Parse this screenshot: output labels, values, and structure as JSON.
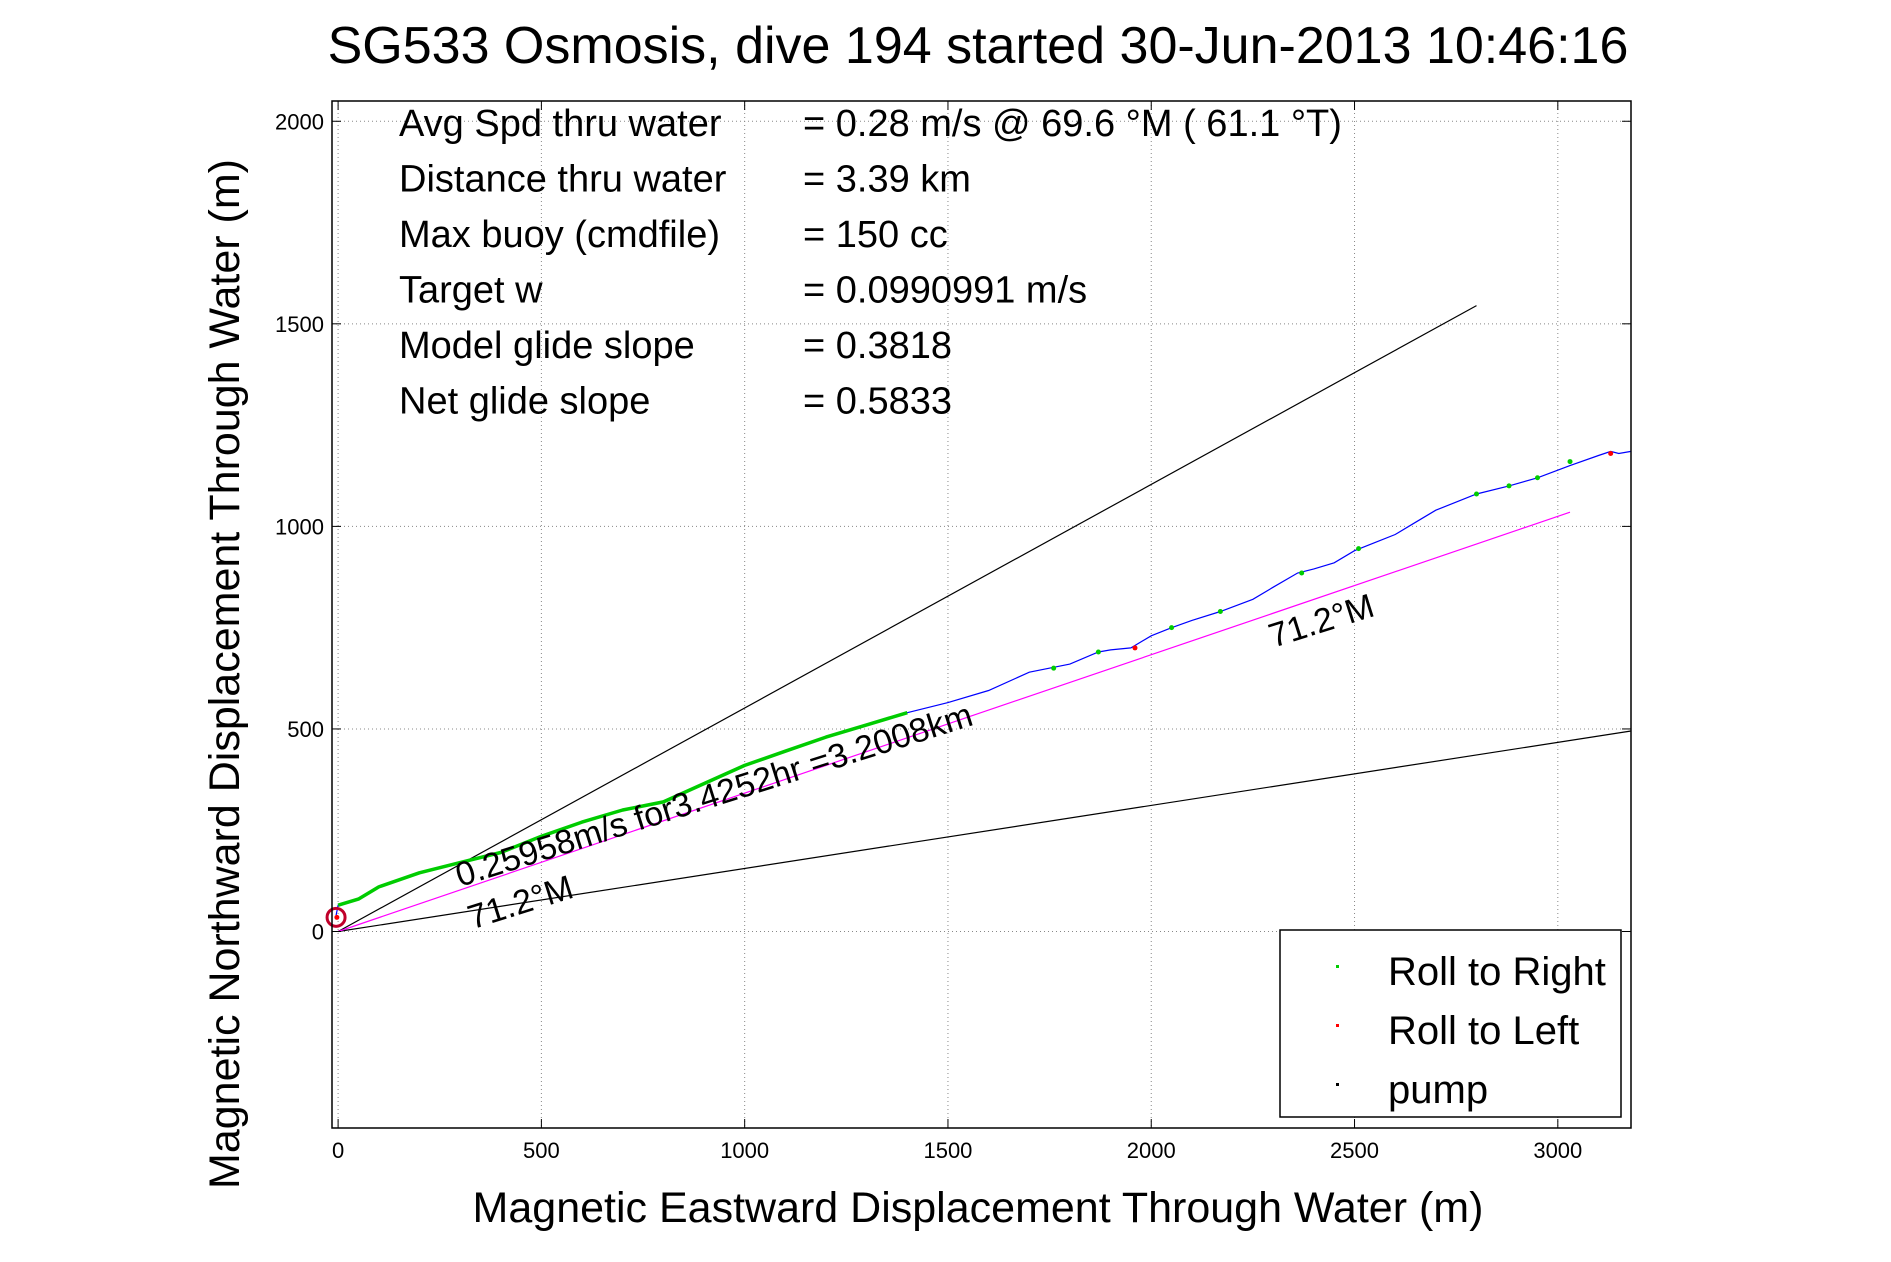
{
  "chart_data": {
    "type": "line",
    "title": "SG533 Osmosis, dive 194 started 30-Jun-2013 10:46:16",
    "xlabel": "Magnetic Eastward Displacement Through Water (m)",
    "ylabel": "Magnetic Northward Displacement Through Water (m)",
    "xlim": [
      -15,
      3180
    ],
    "ylim": [
      -485,
      2050
    ],
    "xticks": [
      0,
      500,
      1000,
      1500,
      2000,
      2500,
      3000
    ],
    "yticks": [
      0,
      500,
      1000,
      1500,
      2000
    ],
    "grid": true,
    "stats": [
      {
        "label": "Avg Spd thru water",
        "value": "=  0.28 m/s @  69.6 °M ( 61.1 °T)"
      },
      {
        "label": "Distance thru water",
        "value": "=  3.39 km"
      },
      {
        "label": "Max buoy (cmdfile)",
        "value": "= 150 cc"
      },
      {
        "label": "Target w",
        "value": "= 0.0990991 m/s"
      },
      {
        "label": "Model glide slope",
        "value": "= 0.3818"
      },
      {
        "label": "Net glide slope",
        "value": "= 0.5833"
      }
    ],
    "track": {
      "color": "#0000ff",
      "x": [
        -5,
        0,
        50,
        100,
        200,
        300,
        400,
        500,
        600,
        700,
        800,
        900,
        1000,
        1100,
        1200,
        1300,
        1400,
        1500,
        1600,
        1700,
        1800,
        1870,
        1900,
        1950,
        2000,
        2050,
        2100,
        2170,
        2250,
        2300,
        2360,
        2400,
        2450,
        2500,
        2550,
        2600,
        2650,
        2700,
        2750,
        2800,
        2880,
        2950,
        3030,
        3100,
        3130,
        3150,
        3180
      ],
      "y": [
        40,
        65,
        80,
        110,
        145,
        170,
        195,
        235,
        270,
        300,
        320,
        365,
        410,
        445,
        480,
        510,
        540,
        565,
        595,
        640,
        660,
        690,
        695,
        700,
        730,
        750,
        768,
        790,
        820,
        850,
        885,
        895,
        910,
        940,
        960,
        980,
        1010,
        1040,
        1060,
        1080,
        1100,
        1120,
        1150,
        1175,
        1185,
        1180,
        1185
      ]
    },
    "roll_right_segments": [
      {
        "x": [
          0,
          50,
          100,
          200,
          300,
          400,
          500,
          600,
          700,
          800,
          900,
          1000,
          1100,
          1200,
          1300,
          1400
        ],
        "y": [
          65,
          80,
          110,
          145,
          170,
          195,
          235,
          270,
          300,
          320,
          365,
          410,
          445,
          480,
          510,
          540
        ]
      }
    ],
    "roll_right_points": {
      "x": [
        1760,
        1870,
        2050,
        2170,
        2370,
        2510,
        2800,
        2880,
        2950,
        3030
      ],
      "y": [
        650,
        690,
        750,
        790,
        885,
        945,
        1080,
        1100,
        1120,
        1160
      ]
    },
    "roll_left_points": {
      "x": [
        -3,
        1960,
        3130
      ],
      "y": [
        35,
        700,
        1180
      ]
    },
    "start_circle": {
      "x": -5,
      "y": 35,
      "color": "#c0002a"
    },
    "ref_lines": [
      {
        "x": [
          0,
          2800
        ],
        "y": [
          0,
          1545
        ],
        "color": "#000000"
      },
      {
        "x": [
          0,
          3180
        ],
        "y": [
          0,
          495
        ],
        "color": "#000000"
      },
      {
        "x": [
          0,
          3030
        ],
        "y": [
          0,
          1035
        ],
        "color": "#ff00ff"
      }
    ],
    "annotations": [
      {
        "text": "0.25958m/s for3.4252hr =3.2008km",
        "x": 300,
        "y": 110,
        "angle": -17.5
      },
      {
        "text": "71.2°M",
        "x": 330,
        "y": 5,
        "angle": -17.5
      },
      {
        "text": "71.2°M",
        "x": 2300,
        "y": 700,
        "angle": -17.5
      }
    ],
    "legend": {
      "placement": "bottom-right",
      "entries": [
        {
          "label": "Roll to Right",
          "color": "#00cc00"
        },
        {
          "label": "Roll to Left",
          "color": "#ff0000"
        },
        {
          "label": "pump",
          "color": "#000000"
        }
      ]
    }
  }
}
